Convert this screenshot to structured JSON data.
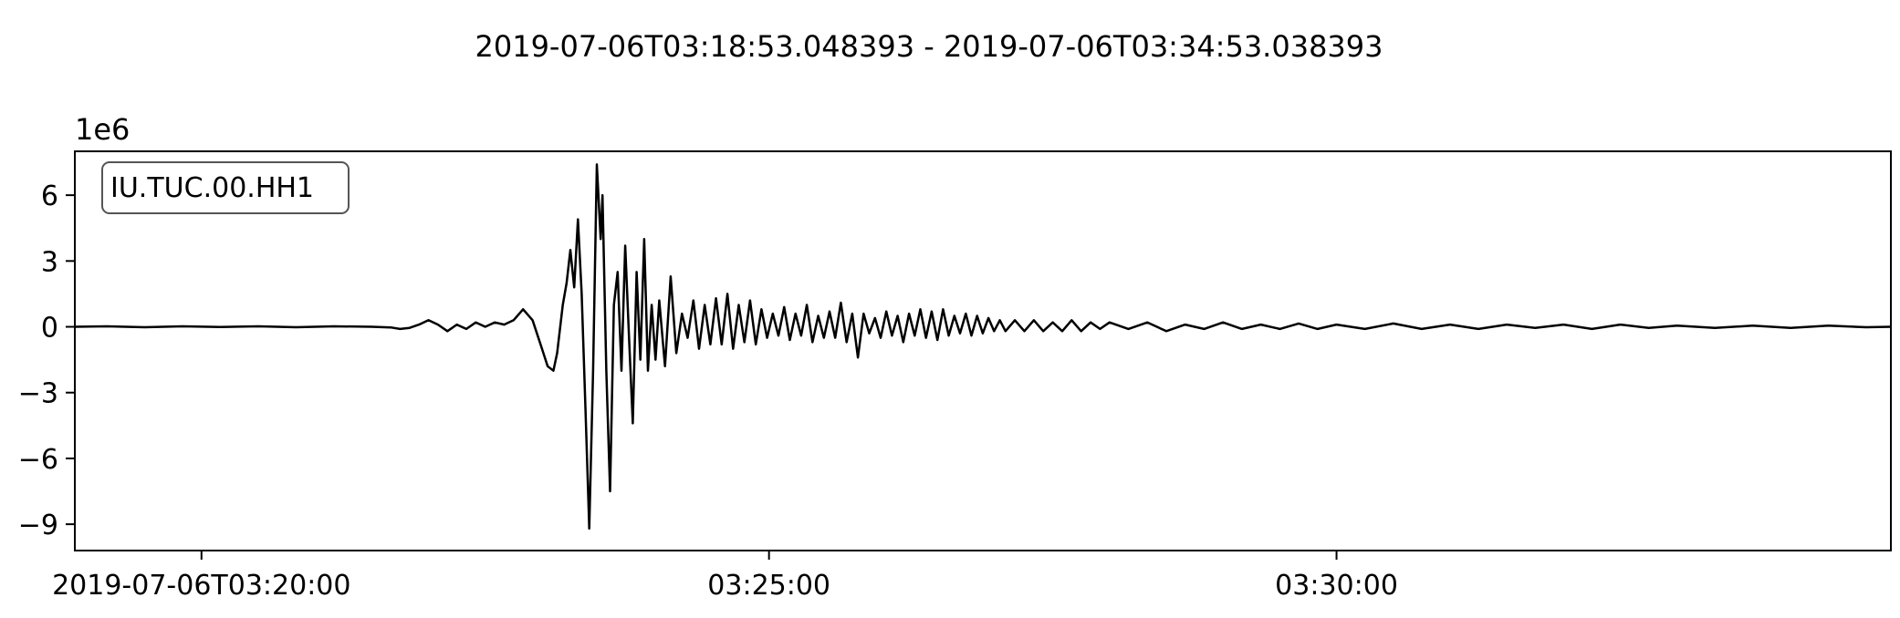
{
  "chart_data": {
    "type": "line",
    "title": "2019-07-06T03:18:53.048393  -  2019-07-06T03:34:53.038393",
    "xlabel": "",
    "ylabel": "",
    "y_scale_label": "1e6",
    "legend": {
      "text": "IU.TUC.00.HH1",
      "placement": "top-left"
    },
    "xlim": [
      "2019-07-06T03:18:53.048393",
      "2019-07-06T03:34:53.038393"
    ],
    "ylim": [
      -10.2,
      8.0
    ],
    "x_ticks": [
      {
        "time": "2019-07-06T03:20:00",
        "label": "2019-07-06T03:20:00"
      },
      {
        "time": "2019-07-06T03:25:00",
        "label": "03:25:00"
      },
      {
        "time": "2019-07-06T03:30:00",
        "label": "03:30:00"
      }
    ],
    "y_ticks": [
      6,
      3,
      0,
      -3,
      -6,
      -9
    ],
    "y_tick_labels": [
      "6",
      "3",
      "0",
      "−3",
      "−6",
      "−9"
    ],
    "grid": false,
    "line_color": "#000000",
    "series": [
      {
        "values_unit": "1e6",
        "points": [
          [
            "03:18:53",
            0.0
          ],
          [
            "03:19:10",
            0.02
          ],
          [
            "03:19:30",
            -0.02
          ],
          [
            "03:19:50",
            0.02
          ],
          [
            "03:20:10",
            -0.01
          ],
          [
            "03:20:30",
            0.02
          ],
          [
            "03:20:50",
            -0.02
          ],
          [
            "03:21:10",
            0.02
          ],
          [
            "03:21:30",
            0.0
          ],
          [
            "03:21:40",
            -0.03
          ],
          [
            "03:21:45",
            -0.1
          ],
          [
            "03:21:50",
            -0.05
          ],
          [
            "03:21:55",
            0.1
          ],
          [
            "03:22:00",
            0.3
          ],
          [
            "03:22:05",
            0.1
          ],
          [
            "03:22:10",
            -0.2
          ],
          [
            "03:22:15",
            0.1
          ],
          [
            "03:22:20",
            -0.1
          ],
          [
            "03:22:25",
            0.2
          ],
          [
            "03:22:30",
            0.0
          ],
          [
            "03:22:35",
            0.2
          ],
          [
            "03:22:40",
            0.1
          ],
          [
            "03:22:45",
            0.3
          ],
          [
            "03:22:50",
            0.8
          ],
          [
            "03:22:55",
            0.3
          ],
          [
            "03:23:00",
            -1.0
          ],
          [
            "03:23:03",
            -1.8
          ],
          [
            "03:23:06",
            -2.0
          ],
          [
            "03:23:08",
            -1.2
          ],
          [
            "03:23:11",
            1.0
          ],
          [
            "03:23:13",
            2.0
          ],
          [
            "03:23:15",
            3.5
          ],
          [
            "03:23:17",
            1.8
          ],
          [
            "03:23:19",
            4.9
          ],
          [
            "03:23:21",
            1.5
          ],
          [
            "03:23:23",
            -3.8
          ],
          [
            "03:23:25",
            -9.2
          ],
          [
            "03:23:27",
            -2.0
          ],
          [
            "03:23:29",
            7.4
          ],
          [
            "03:23:31",
            4.0
          ],
          [
            "03:23:32",
            6.0
          ],
          [
            "03:23:34",
            -2.0
          ],
          [
            "03:23:36",
            -7.5
          ],
          [
            "03:23:38",
            1.0
          ],
          [
            "03:23:40",
            2.5
          ],
          [
            "03:23:42",
            -2.0
          ],
          [
            "03:23:44",
            3.7
          ],
          [
            "03:23:46",
            -0.5
          ],
          [
            "03:23:48",
            -4.4
          ],
          [
            "03:23:50",
            2.5
          ],
          [
            "03:23:52",
            -1.5
          ],
          [
            "03:23:54",
            4.0
          ],
          [
            "03:23:56",
            -2.0
          ],
          [
            "03:23:58",
            1.0
          ],
          [
            "03:24:00",
            -1.5
          ],
          [
            "03:24:02",
            1.2
          ],
          [
            "03:24:05",
            -1.8
          ],
          [
            "03:24:08",
            2.3
          ],
          [
            "03:24:11",
            -1.2
          ],
          [
            "03:24:14",
            0.6
          ],
          [
            "03:24:17",
            -0.5
          ],
          [
            "03:24:20",
            1.2
          ],
          [
            "03:24:23",
            -1.0
          ],
          [
            "03:24:26",
            1.0
          ],
          [
            "03:24:29",
            -0.8
          ],
          [
            "03:24:32",
            1.3
          ],
          [
            "03:24:35",
            -0.8
          ],
          [
            "03:24:38",
            1.5
          ],
          [
            "03:24:41",
            -1.0
          ],
          [
            "03:24:44",
            1.0
          ],
          [
            "03:24:47",
            -0.7
          ],
          [
            "03:24:50",
            1.2
          ],
          [
            "03:24:53",
            -0.8
          ],
          [
            "03:24:56",
            0.8
          ],
          [
            "03:24:59",
            -0.5
          ],
          [
            "03:25:02",
            0.6
          ],
          [
            "03:25:05",
            -0.4
          ],
          [
            "03:25:08",
            0.9
          ],
          [
            "03:25:11",
            -0.6
          ],
          [
            "03:25:14",
            0.6
          ],
          [
            "03:25:17",
            -0.4
          ],
          [
            "03:25:20",
            1.0
          ],
          [
            "03:25:23",
            -0.7
          ],
          [
            "03:25:26",
            0.5
          ],
          [
            "03:25:29",
            -0.5
          ],
          [
            "03:25:32",
            0.7
          ],
          [
            "03:25:35",
            -0.5
          ],
          [
            "03:25:38",
            1.1
          ],
          [
            "03:25:41",
            -0.7
          ],
          [
            "03:25:44",
            0.6
          ],
          [
            "03:25:47",
            -1.4
          ],
          [
            "03:25:50",
            0.6
          ],
          [
            "03:25:53",
            -0.3
          ],
          [
            "03:25:56",
            0.4
          ],
          [
            "03:25:59",
            -0.5
          ],
          [
            "03:26:02",
            0.7
          ],
          [
            "03:26:05",
            -0.4
          ],
          [
            "03:26:08",
            0.5
          ],
          [
            "03:26:11",
            -0.7
          ],
          [
            "03:26:14",
            0.6
          ],
          [
            "03:26:17",
            -0.4
          ],
          [
            "03:26:20",
            0.8
          ],
          [
            "03:26:23",
            -0.5
          ],
          [
            "03:26:26",
            0.7
          ],
          [
            "03:26:29",
            -0.6
          ],
          [
            "03:26:32",
            0.8
          ],
          [
            "03:26:35",
            -0.4
          ],
          [
            "03:26:38",
            0.5
          ],
          [
            "03:26:41",
            -0.3
          ],
          [
            "03:26:44",
            0.6
          ],
          [
            "03:26:47",
            -0.4
          ],
          [
            "03:26:50",
            0.5
          ],
          [
            "03:26:53",
            -0.3
          ],
          [
            "03:26:56",
            0.4
          ],
          [
            "03:26:59",
            -0.2
          ],
          [
            "03:27:02",
            0.3
          ],
          [
            "03:27:05",
            -0.2
          ],
          [
            "03:27:10",
            0.3
          ],
          [
            "03:27:15",
            -0.2
          ],
          [
            "03:27:20",
            0.3
          ],
          [
            "03:27:25",
            -0.2
          ],
          [
            "03:27:30",
            0.2
          ],
          [
            "03:27:35",
            -0.2
          ],
          [
            "03:27:40",
            0.3
          ],
          [
            "03:27:45",
            -0.2
          ],
          [
            "03:27:50",
            0.2
          ],
          [
            "03:27:55",
            -0.1
          ],
          [
            "03:28:00",
            0.2
          ],
          [
            "03:28:10",
            -0.1
          ],
          [
            "03:28:20",
            0.2
          ],
          [
            "03:28:30",
            -0.2
          ],
          [
            "03:28:40",
            0.1
          ],
          [
            "03:28:50",
            -0.1
          ],
          [
            "03:29:00",
            0.2
          ],
          [
            "03:29:10",
            -0.1
          ],
          [
            "03:29:20",
            0.1
          ],
          [
            "03:29:30",
            -0.1
          ],
          [
            "03:29:40",
            0.15
          ],
          [
            "03:29:50",
            -0.1
          ],
          [
            "03:30:00",
            0.1
          ],
          [
            "03:30:15",
            -0.1
          ],
          [
            "03:30:30",
            0.15
          ],
          [
            "03:30:45",
            -0.1
          ],
          [
            "03:31:00",
            0.1
          ],
          [
            "03:31:15",
            -0.1
          ],
          [
            "03:31:30",
            0.1
          ],
          [
            "03:31:45",
            -0.05
          ],
          [
            "03:32:00",
            0.1
          ],
          [
            "03:32:15",
            -0.1
          ],
          [
            "03:32:30",
            0.1
          ],
          [
            "03:32:45",
            -0.05
          ],
          [
            "03:33:00",
            0.05
          ],
          [
            "03:33:20",
            -0.05
          ],
          [
            "03:33:40",
            0.05
          ],
          [
            "03:34:00",
            -0.05
          ],
          [
            "03:34:20",
            0.05
          ],
          [
            "03:34:40",
            -0.02
          ],
          [
            "03:34:53",
            0.0
          ]
        ]
      }
    ]
  }
}
